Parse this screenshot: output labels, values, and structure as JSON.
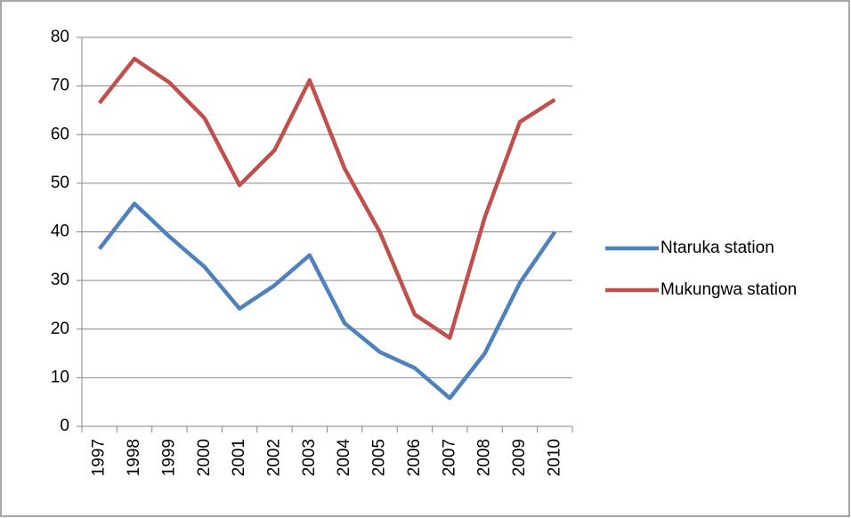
{
  "chart_data": {
    "type": "line",
    "categories": [
      "1997",
      "1998",
      "1999",
      "2000",
      "2001",
      "2002",
      "2003",
      "2004",
      "2005",
      "2006",
      "2007",
      "2008",
      "2009",
      "2010"
    ],
    "series": [
      {
        "name": "Ntaruka station",
        "color": "#4f81bd",
        "values": [
          36.5,
          45.8,
          39,
          32.8,
          24.2,
          29,
          35.2,
          21.2,
          15.3,
          12,
          5.8,
          15,
          29.5,
          40
        ]
      },
      {
        "name": "Mukungwa station",
        "color": "#c0504d",
        "values": [
          66.5,
          75.6,
          70.7,
          63.4,
          49.6,
          56.8,
          71.2,
          53,
          40,
          23,
          18.2,
          43,
          62.6,
          67.2
        ]
      }
    ],
    "ylim": [
      0,
      80
    ],
    "yticks": [
      0,
      10,
      20,
      30,
      40,
      50,
      60,
      70,
      80
    ],
    "grid": true,
    "legend": "right"
  }
}
